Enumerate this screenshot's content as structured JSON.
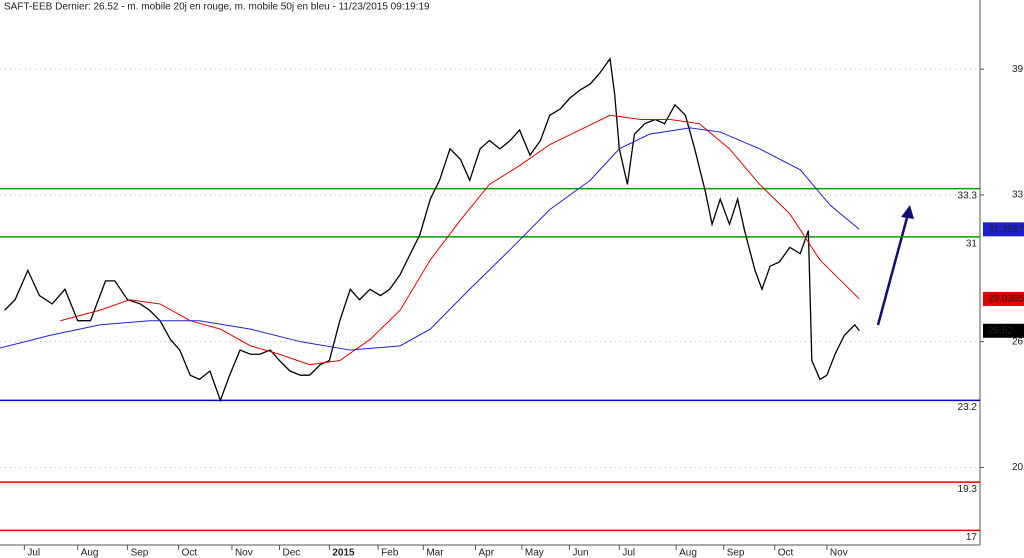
{
  "chart_data": {
    "type": "line",
    "title": "SAFT-EEB Dernier: 26.52 - m. mobile 20j en rouge, m. mobile 50j en bleu - 11/23/2015 09:19:19",
    "xlim": [
      0,
      84.5
    ],
    "xticks": [
      {
        "value": 2.1,
        "label": "Jul"
      },
      {
        "value": 6.7,
        "label": "Aug"
      },
      {
        "value": 11,
        "label": "Sep"
      },
      {
        "value": 15.4,
        "label": "Oct"
      },
      {
        "value": 20,
        "label": "Nov"
      },
      {
        "value": 24.1,
        "label": "Dec"
      },
      {
        "value": 28.4,
        "label": "2015"
      },
      {
        "value": 32.6,
        "label": "Feb"
      },
      {
        "value": 36.5,
        "label": "Mar"
      },
      {
        "value": 41,
        "label": "Apr"
      },
      {
        "value": 45,
        "label": "May"
      },
      {
        "value": 49.1,
        "label": "Jun"
      },
      {
        "value": 53.4,
        "label": "Jul"
      },
      {
        "value": 58.3,
        "label": "Aug"
      },
      {
        "value": 62.4,
        "label": "Sep"
      },
      {
        "value": 66.8,
        "label": "Oct"
      },
      {
        "value": 71.3,
        "label": "Nov"
      }
    ],
    "ylim": [
      16.3,
      42.3
    ],
    "yticks": [
      39,
      33,
      26,
      20
    ],
    "grid": true,
    "hlines": [
      {
        "value": 33.3,
        "color": "#00a000"
      },
      {
        "value": 31,
        "color": "#00a000"
      },
      {
        "value": 23.2,
        "color": "#0000c0"
      },
      {
        "value": 19.3,
        "color": "#e00000"
      },
      {
        "value": 17,
        "color": "#e00000"
      }
    ],
    "series": [
      {
        "name": "SAFT-EEB",
        "color": "#000000",
        "x": [
          0.4,
          1.3,
          2.4,
          3.4,
          4.5,
          5.6,
          6.7,
          7.8,
          9.1,
          9.9,
          11,
          12.1,
          12.9,
          13.8,
          14.7,
          15.5,
          16.4,
          17.2,
          18.1,
          19,
          19.8,
          20.7,
          21.6,
          22.4,
          23.3,
          24.1,
          25,
          25.9,
          26.7,
          27.6,
          28.4,
          29.3,
          30.2,
          31,
          31.9,
          32.8,
          33.6,
          34.5,
          35.3,
          36.2,
          37.1,
          37.9,
          38.8,
          39.7,
          40.5,
          41.4,
          42.2,
          43.1,
          44,
          44.8,
          45.7,
          46.6,
          47.4,
          48.3,
          49.1,
          50,
          50.9,
          51.7,
          52.6,
          53,
          53.4,
          54.1,
          54.7,
          55.6,
          56.5,
          57.3,
          58.2,
          59.1,
          59.9,
          60.8,
          61.4,
          62.1,
          62.9,
          63.6,
          64.2,
          65.1,
          65.7,
          66.4,
          67.2,
          68.1,
          69,
          69.7,
          70,
          70.7,
          71.3,
          72,
          72.8,
          73.7,
          74.1
        ],
        "values": [
          27.5,
          28.0,
          29.4,
          28.2,
          27.8,
          28.5,
          27.0,
          27.0,
          28.9,
          28.9,
          28.0,
          27.8,
          27.5,
          27.0,
          26.1,
          25.6,
          24.4,
          24.2,
          24.6,
          23.2,
          24.4,
          25.6,
          25.4,
          25.4,
          25.6,
          25.1,
          24.6,
          24.4,
          24.4,
          24.9,
          25.1,
          27.0,
          28.5,
          28.0,
          28.5,
          28.2,
          28.5,
          29.2,
          30.1,
          31.1,
          32.8,
          33.7,
          35.2,
          34.7,
          33.7,
          35.2,
          35.6,
          35.2,
          35.6,
          36.1,
          34.9,
          35.6,
          36.8,
          37.1,
          37.6,
          38.0,
          38.3,
          38.8,
          39.5,
          37.8,
          35.2,
          33.5,
          35.9,
          36.4,
          36.6,
          36.4,
          37.3,
          36.8,
          35.2,
          33.2,
          31.6,
          32.8,
          31.6,
          32.8,
          31.3,
          29.4,
          28.5,
          29.6,
          29.8,
          30.5,
          30.2,
          31.3,
          25.1,
          24.2,
          24.4,
          25.4,
          26.3,
          26.8,
          26.52
        ]
      },
      {
        "name": "m. mobile 20j",
        "color": "#e00000",
        "x": [
          5.2,
          8.6,
          11.2,
          13.8,
          16.4,
          19,
          21.6,
          24.1,
          26.7,
          29.3,
          31.9,
          34.5,
          37.1,
          39.7,
          42.2,
          44.8,
          47.4,
          50,
          52.6,
          55.2,
          57.8,
          60.3,
          62.9,
          65.5,
          68.1,
          70.7,
          74.1
        ],
        "values": [
          27.0,
          27.5,
          28.0,
          27.8,
          27.0,
          26.6,
          25.8,
          25.4,
          24.9,
          25.1,
          26.1,
          27.5,
          29.9,
          31.8,
          33.5,
          34.4,
          35.4,
          36.1,
          36.8,
          36.6,
          36.6,
          36.4,
          35.2,
          33.5,
          32.1,
          29.9,
          28.0395
        ]
      },
      {
        "name": "m. mobile 50j",
        "color": "#2020d0",
        "x": [
          0,
          4.3,
          8.6,
          12.9,
          17.2,
          21.6,
          25.9,
          30.2,
          34.5,
          37.1,
          40.5,
          44,
          47.4,
          50.9,
          53.4,
          56,
          59.5,
          62.1,
          65.5,
          69,
          71.6,
          74.1
        ],
        "values": [
          25.7,
          26.3,
          26.8,
          27.0,
          27.0,
          26.6,
          26.0,
          25.6,
          25.8,
          26.6,
          28.5,
          30.4,
          32.3,
          33.7,
          35.2,
          35.9,
          36.2,
          36.0,
          35.2,
          34.2,
          32.5,
          31.3587
        ]
      }
    ]
  }
}
